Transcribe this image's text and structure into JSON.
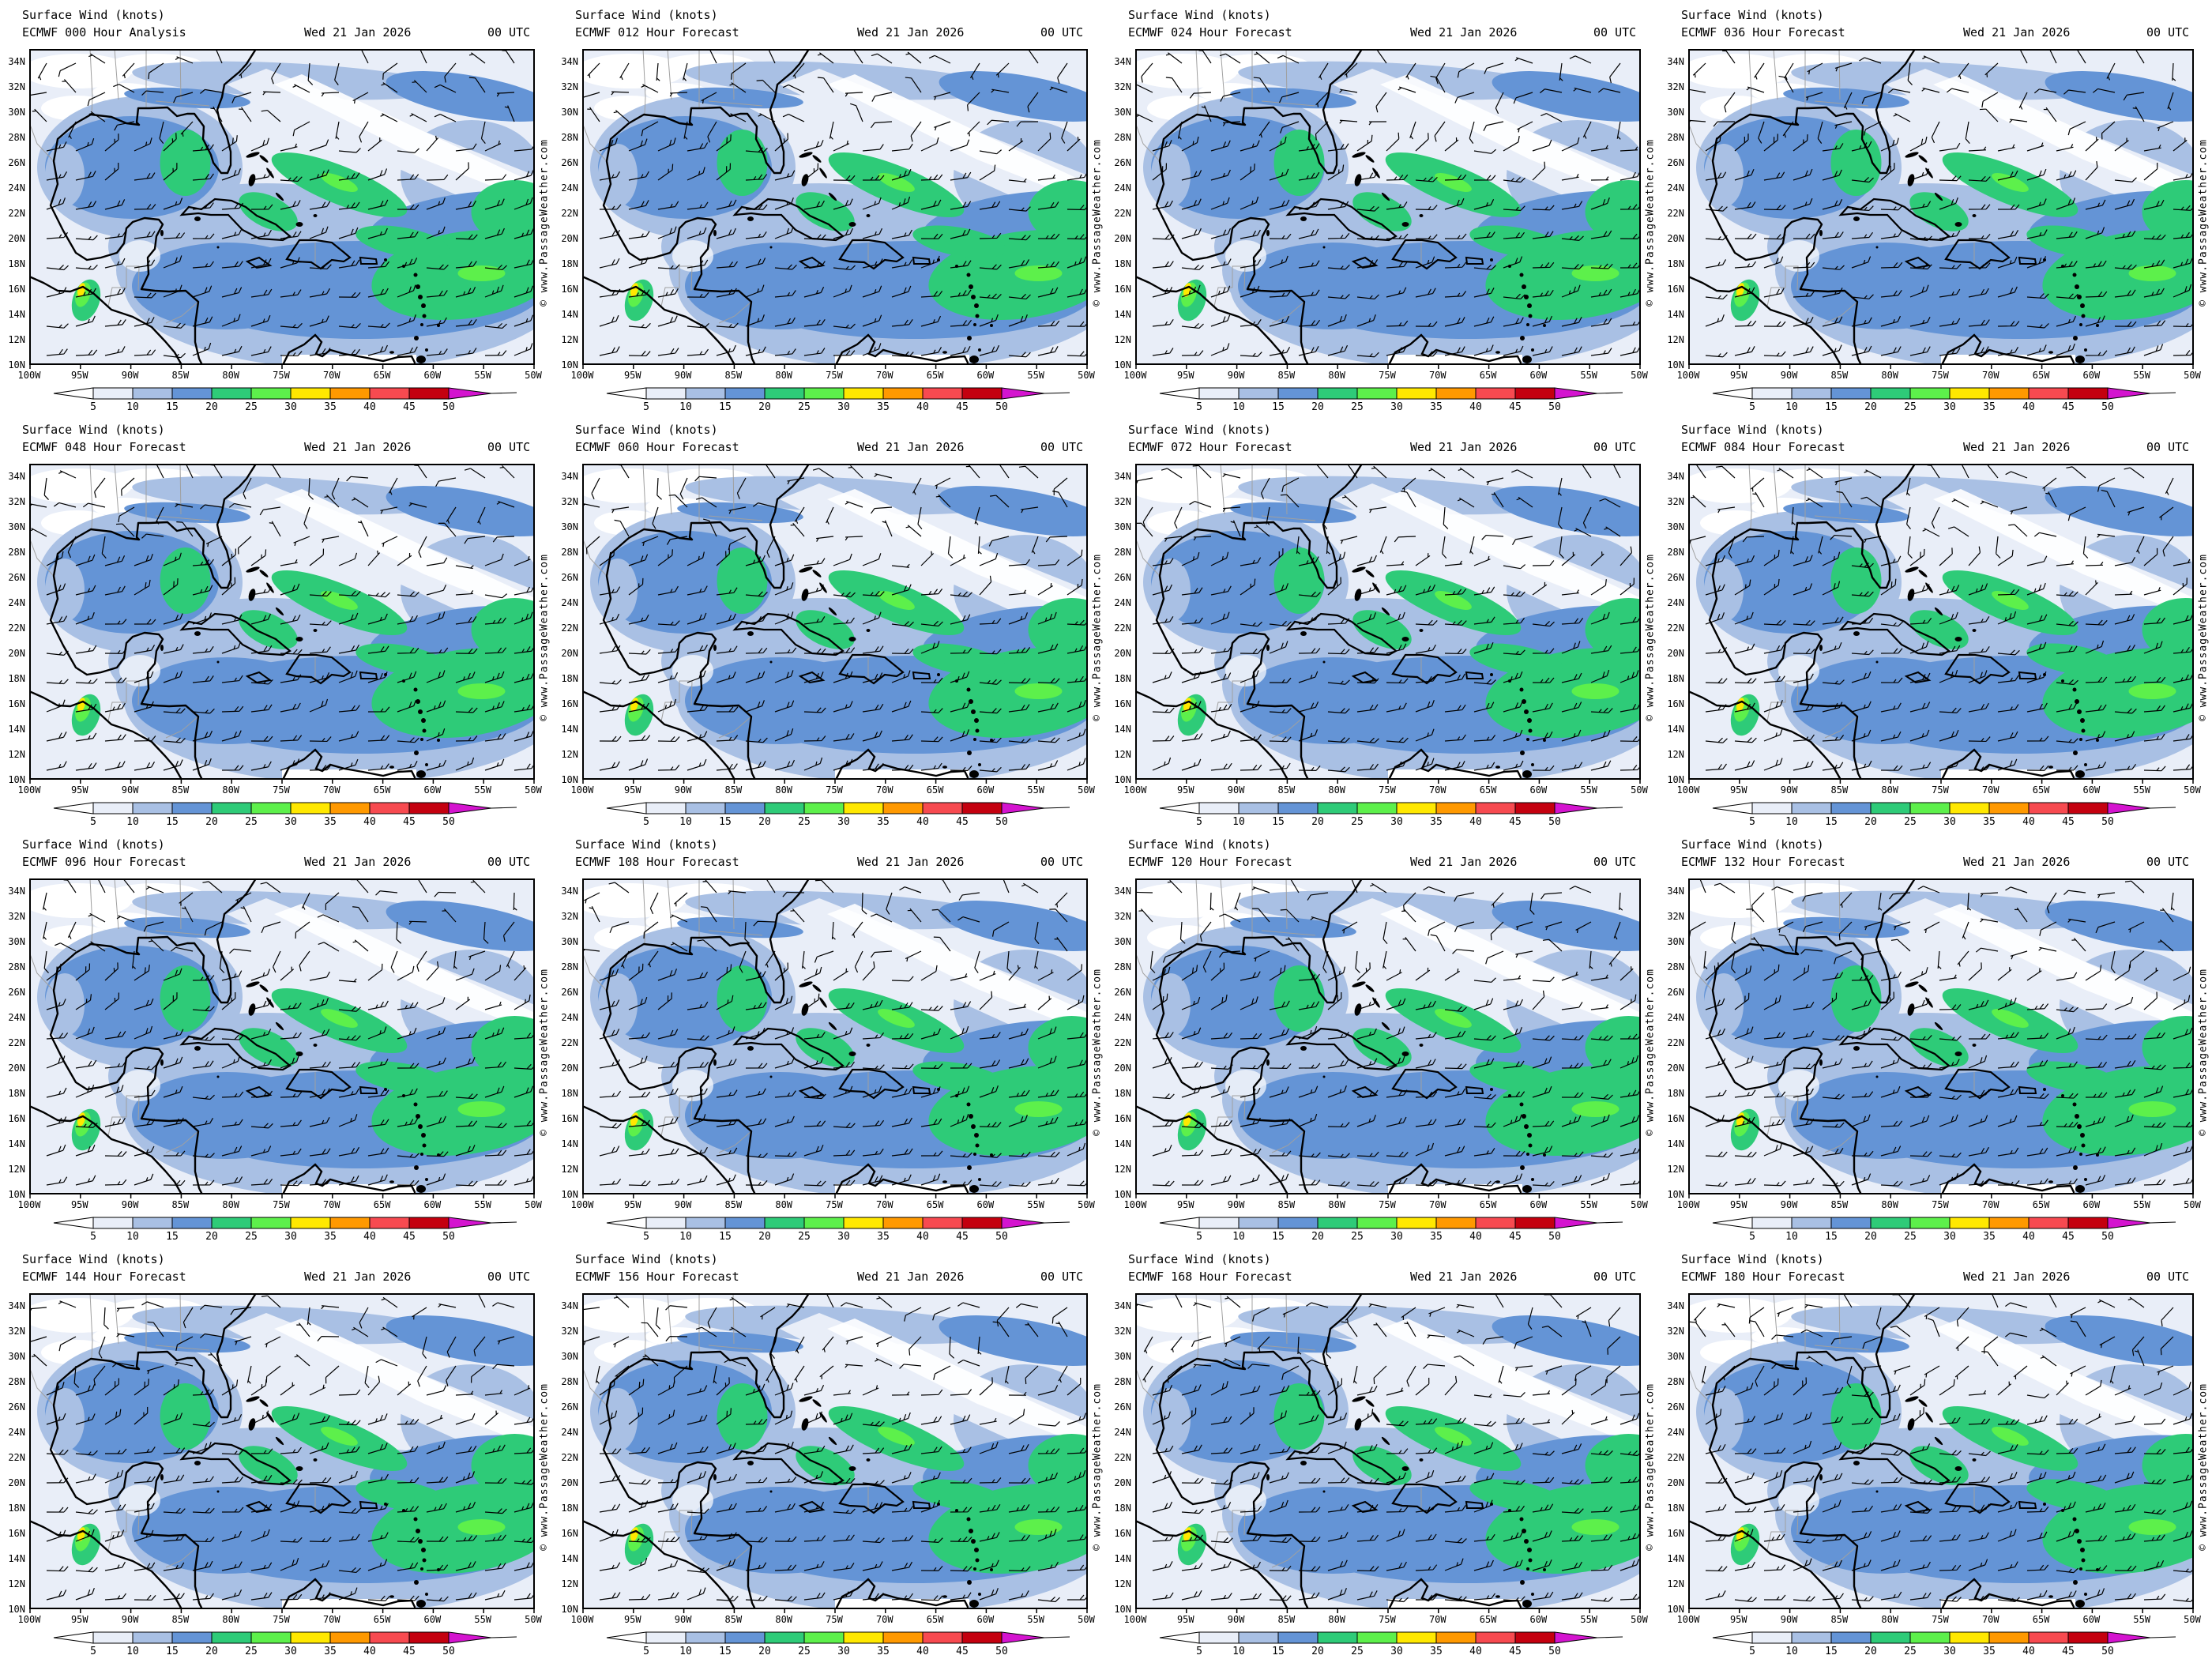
{
  "page_title": "Surface Wind (knots)",
  "run": {
    "model": "ECMWF",
    "date": "Wed 21 Jan 2026",
    "time": "00 UTC"
  },
  "panels": [
    {
      "forecast_label": "ECMWF 000 Hour Analysis"
    },
    {
      "forecast_label": "ECMWF 012 Hour Forecast"
    },
    {
      "forecast_label": "ECMWF 024 Hour Forecast"
    },
    {
      "forecast_label": "ECMWF 036 Hour Forecast"
    },
    {
      "forecast_label": "ECMWF 048 Hour Forecast"
    },
    {
      "forecast_label": "ECMWF 060 Hour Forecast"
    },
    {
      "forecast_label": "ECMWF 072 Hour Forecast"
    },
    {
      "forecast_label": "ECMWF 084 Hour Forecast"
    },
    {
      "forecast_label": "ECMWF 096 Hour Forecast"
    },
    {
      "forecast_label": "ECMWF 108 Hour Forecast"
    },
    {
      "forecast_label": "ECMWF 120 Hour Forecast"
    },
    {
      "forecast_label": "ECMWF 132 Hour Forecast"
    },
    {
      "forecast_label": "ECMWF 144 Hour Forecast"
    },
    {
      "forecast_label": "ECMWF 156 Hour Forecast"
    },
    {
      "forecast_label": "ECMWF 168 Hour Forecast"
    },
    {
      "forecast_label": "ECMWF 180 Hour Forecast"
    }
  ],
  "map": {
    "lat_labels": [
      "34N",
      "32N",
      "30N",
      "28N",
      "26N",
      "24N",
      "22N",
      "20N",
      "18N",
      "16N",
      "14N",
      "12N",
      "10N"
    ],
    "lon_labels": [
      "100W",
      "95W",
      "90W",
      "85W",
      "80W",
      "75W",
      "70W",
      "65W",
      "60W",
      "55W",
      "50W"
    ]
  },
  "colorbar": {
    "tick_labels": [
      "5",
      "10",
      "15",
      "20",
      "25",
      "30",
      "35",
      "40",
      "45",
      "50"
    ],
    "segment_colors": [
      "#e9eef8",
      "#a9c0e4",
      "#6494d6",
      "#2ecb78",
      "#5df04b",
      "#ffe800",
      "#ff9900",
      "#f74a50",
      "#c4000f"
    ],
    "underflow_color": "#ffffff",
    "overflow_color": "#d414cf"
  },
  "watermark": "© www.PassageWeather.com",
  "map_palette": {
    "calm": "#ffffff",
    "kt5": "#e9eef8",
    "kt10": "#a9c0e4",
    "kt15": "#6494d6",
    "kt20": "#2ecb78",
    "kt25": "#5df04b",
    "kt30": "#ffe800",
    "coast": "#000000",
    "border_gray": "#a0a0a0",
    "barb": "#000000"
  }
}
